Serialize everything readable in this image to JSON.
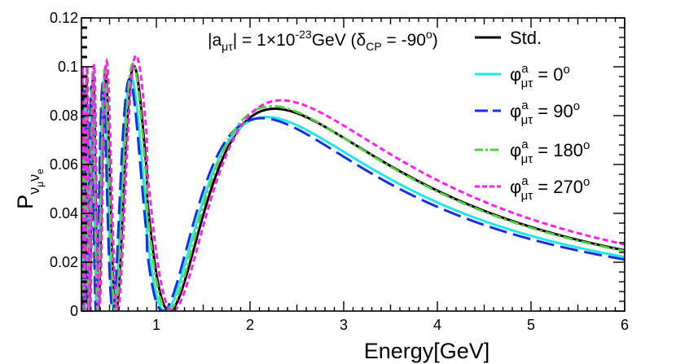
{
  "chart_data": {
    "type": "line",
    "xlabel": "Energy[GeV]",
    "ylabel": {
      "main": "P",
      "sub1": "ν",
      "subsub1": "μ",
      "sub2": "ν",
      "subsub2": "e"
    },
    "xlim": [
      0.2,
      6.0
    ],
    "ylim": [
      0.0,
      0.12
    ],
    "xticks": [
      {
        "value": 1,
        "label": "1"
      },
      {
        "value": 2,
        "label": "2"
      },
      {
        "value": 3,
        "label": "3"
      },
      {
        "value": 4,
        "label": "4"
      },
      {
        "value": 5,
        "label": "5"
      },
      {
        "value": 6,
        "label": "6"
      }
    ],
    "yticks": [
      {
        "value": 0,
        "label": "0"
      },
      {
        "value": 0.02,
        "label": "0.02"
      },
      {
        "value": 0.04,
        "label": "0.04"
      },
      {
        "value": 0.06,
        "label": "0.06"
      },
      {
        "value": 0.08,
        "label": "0.08"
      },
      {
        "value": 0.1,
        "label": "0.1"
      },
      {
        "value": 0.12,
        "label": "0.12"
      }
    ],
    "annotation": {
      "p1": "|a",
      "p1sub": "μτ",
      "p2": "| = 1×10",
      "p2sup": "-23",
      "p3": "GeV (δ",
      "p3sub": "CP",
      "p4": " = -90",
      "p4sup": "o",
      "p5": ")"
    },
    "series": [
      {
        "name": "Std.",
        "color": "#000000",
        "dash": "solid",
        "amp": 0.0825,
        "peak": 2.28,
        "osc": 1.0,
        "legend": {
          "label": "Std."
        }
      },
      {
        "name": "phi0",
        "color": "#22e6e6",
        "dash": "solid",
        "amp": 0.079,
        "peak": 2.28,
        "osc": 0.96,
        "legend": {
          "sym": "φ",
          "sup": "a",
          "sub": "μτ",
          "rest": " = 0",
          "deg": "o"
        }
      },
      {
        "name": "phi90",
        "color": "#1a2ee0",
        "dash": "longdash",
        "amp": 0.0785,
        "peak": 2.25,
        "osc": 0.95,
        "legend": {
          "sym": "φ",
          "sup": "a",
          "sub": "μτ",
          "rest": " = 90",
          "deg": "o"
        }
      },
      {
        "name": "phi180",
        "color": "#55cc44",
        "dash": "dashdot",
        "amp": 0.0835,
        "peak": 2.25,
        "osc": 1.0,
        "legend": {
          "sym": "φ",
          "sup": "a",
          "sub": "μτ",
          "rest": " = 180",
          "deg": "o"
        }
      },
      {
        "name": "phi270",
        "color": "#ff22ee",
        "dash": "shortdash",
        "amp": 0.086,
        "peak": 2.28,
        "osc": 1.03,
        "legend": {
          "sym": "φ",
          "sup": "a",
          "sub": "μτ",
          "rest": " = 270",
          "deg": "o"
        }
      }
    ]
  }
}
